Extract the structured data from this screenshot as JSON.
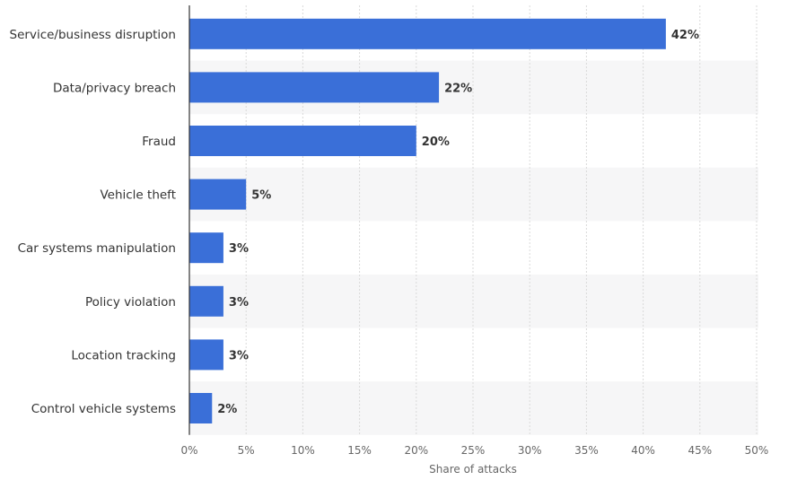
{
  "chart_data": {
    "type": "bar",
    "orientation": "horizontal",
    "title": "",
    "xlabel": "Share of attacks",
    "ylabel": "",
    "categories": [
      "Service/business disruption",
      "Data/privacy breach",
      "Fraud",
      "Vehicle theft",
      "Car systems manipulation",
      "Policy violation",
      "Location tracking",
      "Control vehicle systems"
    ],
    "values": [
      42,
      22,
      20,
      5,
      3,
      3,
      3,
      2
    ],
    "value_labels": [
      "42%",
      "22%",
      "20%",
      "5%",
      "3%",
      "3%",
      "3%",
      "2%"
    ],
    "xlim": [
      0,
      50
    ],
    "xticks": [
      0,
      5,
      10,
      15,
      20,
      25,
      30,
      35,
      40,
      45,
      50
    ],
    "xtick_labels": [
      "0%",
      "5%",
      "10%",
      "15%",
      "20%",
      "25%",
      "30%",
      "35%",
      "40%",
      "45%",
      "50%"
    ],
    "grid": true,
    "bar_color": "#3a6fd8"
  }
}
